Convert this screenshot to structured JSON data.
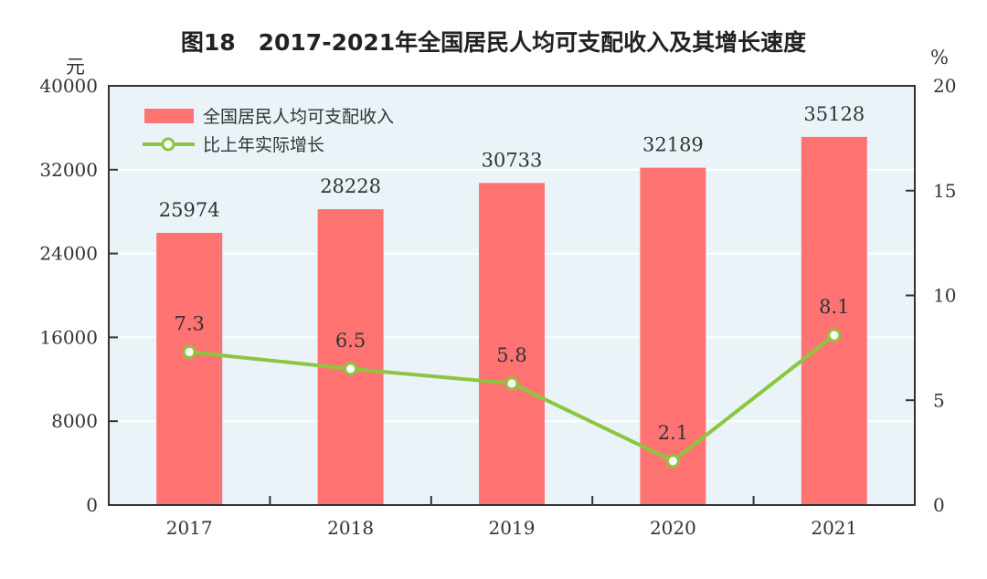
{
  "chart_data": {
    "type": "bar+line",
    "title": "图18　2017-2021年全国居民人均可支配收入及其增长速度",
    "categories": [
      "2017",
      "2018",
      "2019",
      "2020",
      "2021"
    ],
    "series": [
      {
        "name": "全国居民人均可支配收入",
        "type": "bar",
        "axis": "left",
        "values": [
          25974,
          28228,
          30733,
          32189,
          35128
        ],
        "color": "#ff7373"
      },
      {
        "name": "比上年实际增长",
        "type": "line",
        "axis": "right",
        "values": [
          7.3,
          6.5,
          5.8,
          2.1,
          8.1
        ],
        "color": "#8cc63f"
      }
    ],
    "ylabel_left": "元",
    "ylabel_right": "%",
    "ylim_left": [
      0,
      40000
    ],
    "ylim_right": [
      0,
      20
    ],
    "yticks_left": [
      "0",
      "8000",
      "16000",
      "24000",
      "32000",
      "40000"
    ],
    "yticks_right": [
      "0",
      "5",
      "10",
      "15",
      "20"
    ],
    "bar_labels": [
      "25974",
      "28228",
      "30733",
      "32189",
      "35128"
    ],
    "line_labels": [
      "7.3",
      "6.5",
      "5.8",
      "2.1",
      "8.1"
    ],
    "grid": true,
    "legend": "top-left",
    "background": "#eaf4f8"
  }
}
